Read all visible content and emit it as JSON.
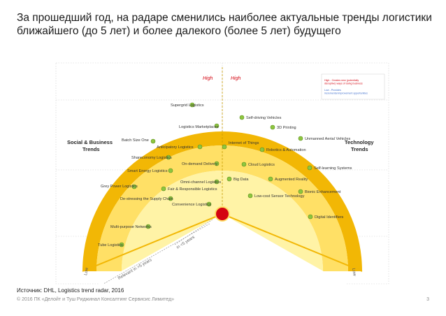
{
  "slide": {
    "title": "За прошедший год, на радаре сменились наиболее актуальные тренды логистики ближайшего (до 5 лет) и более далекого (более 5 лет) будущего",
    "source": "Источник: DHL, Logistics trend radar, 2016",
    "copyright": "© 2016 ПК «Делойт и Туш Риджинал Консалтинг Сервисис Лимитед»",
    "page_number": "3"
  },
  "radar": {
    "sections": {
      "left": "Social & Business Trends",
      "right": "Technology Trends"
    },
    "impact": {
      "high_left": "High",
      "high_right": "High",
      "low_left": "Low",
      "low_right": "Low"
    },
    "horizons": {
      "near": "in <5 years",
      "far": "Relevant in >5 years"
    },
    "legend": {
      "high": "High - Creates new (potentially disruptive) ways of doing business",
      "low": "Low - Provides incremental improvement opportunities"
    },
    "colors": {
      "outer_ring": "#f2b705",
      "inner_ring": "#ffe066",
      "center": "#fff8d0",
      "marker": "#8dc63f",
      "core": "#d40511",
      "high_label": "#d40511"
    },
    "left_trends": [
      {
        "label": "Supergrid Logistics"
      },
      {
        "label": "Batch Size One"
      },
      {
        "label": "Shareconomy Logistics"
      },
      {
        "label": "Smart Energy Logistics"
      },
      {
        "label": "Grey Power Logistics"
      },
      {
        "label": "De-stressing the Supply Chain"
      },
      {
        "label": "Multi-purpose Networks"
      },
      {
        "label": "Tube Logistics"
      },
      {
        "label": "Logistics Marketplaces"
      },
      {
        "label": "Anticipatory Logistics"
      },
      {
        "label": "On-demand Delivery"
      },
      {
        "label": "Omni-channel Logistics"
      },
      {
        "label": "Fair & Responsible Logistics"
      },
      {
        "label": "Convenience Logistics"
      }
    ],
    "right_trends": [
      {
        "label": "Self-driving Vehicles"
      },
      {
        "label": "3D Printing"
      },
      {
        "label": "Unmanned Aerial Vehicles"
      },
      {
        "label": "Internet of Things"
      },
      {
        "label": "Robotics & Automation"
      },
      {
        "label": "Cloud Logistics"
      },
      {
        "label": "Self-learning Systems"
      },
      {
        "label": "Big Data"
      },
      {
        "label": "Augmented Reality"
      },
      {
        "label": "Low-cost Sensor Technology"
      },
      {
        "label": "Bionic Enhancement"
      },
      {
        "label": "Digital Identifiers"
      }
    ]
  }
}
